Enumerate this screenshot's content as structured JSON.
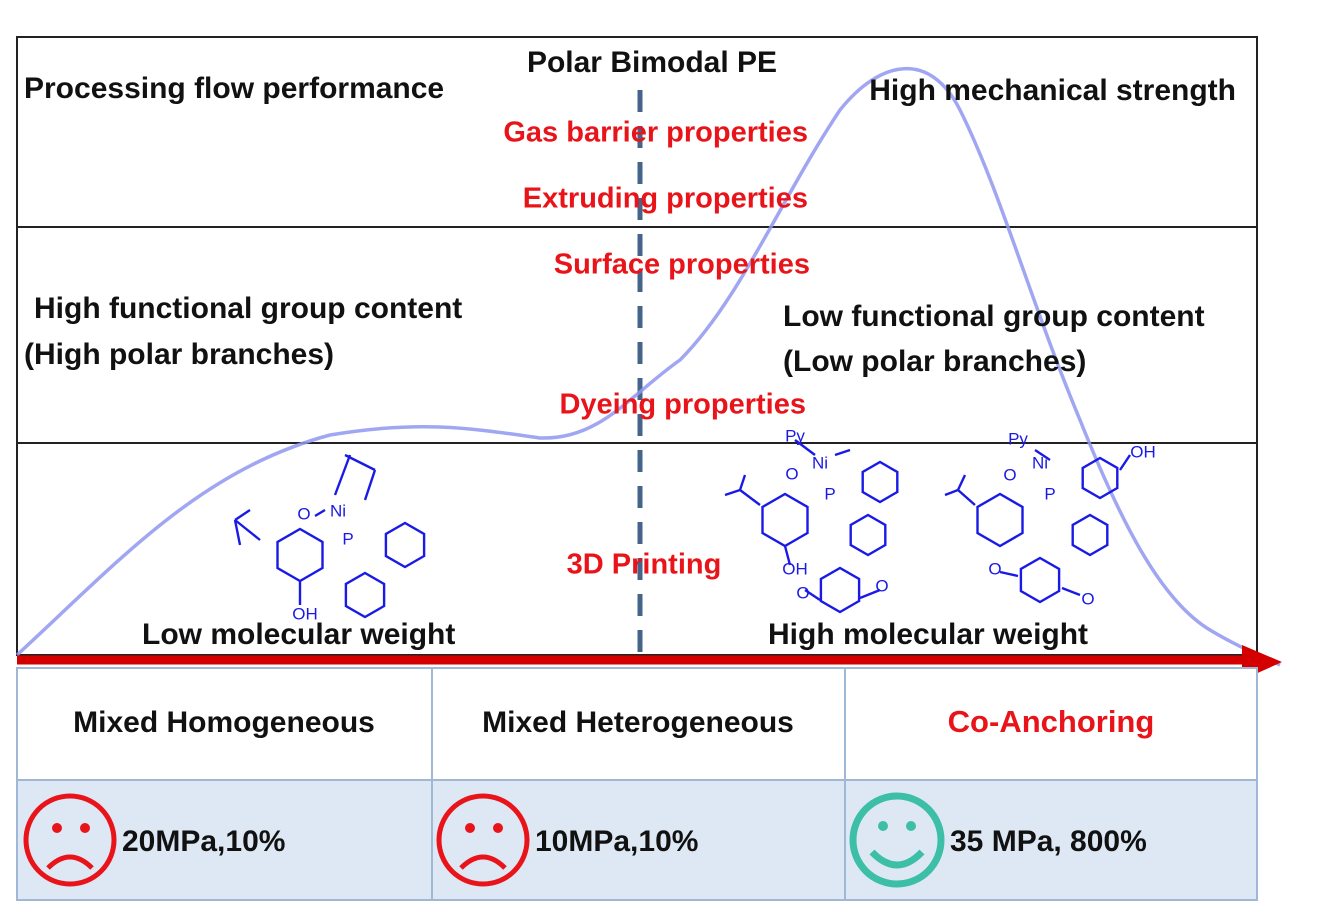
{
  "title": "Polar Bimodal PE",
  "top_row": {
    "left": "Processing flow performance",
    "right": "High mechanical strength"
  },
  "properties": [
    "Gas barrier properties",
    "Extruding properties",
    "Surface properties",
    "Dyeing properties",
    "3D Printing"
  ],
  "middle_row": {
    "left": [
      "High functional group content",
      "(High polar branches)"
    ],
    "right": [
      "Low functional group content",
      "(Low polar branches)"
    ]
  },
  "bottom_row": {
    "left": "Low molecular weight",
    "right": "High  molecular weight"
  },
  "catalysts": [
    {
      "labels": [
        "Ni",
        "O",
        "P",
        "OH"
      ]
    },
    {
      "labels": [
        "Py",
        "O",
        "Ni",
        "P",
        "OH",
        "O",
        "O"
      ]
    },
    {
      "labels": [
        "Py",
        "O",
        "Ni",
        "P",
        "OH",
        "O",
        "O"
      ]
    }
  ],
  "table": {
    "methods": [
      "Mixed Homogeneous",
      "Mixed Heterogeneous",
      "Co-Anchoring"
    ],
    "results": [
      "20MPa,10%",
      "10MPa,10%",
      "35 MPa, 800%"
    ]
  }
}
